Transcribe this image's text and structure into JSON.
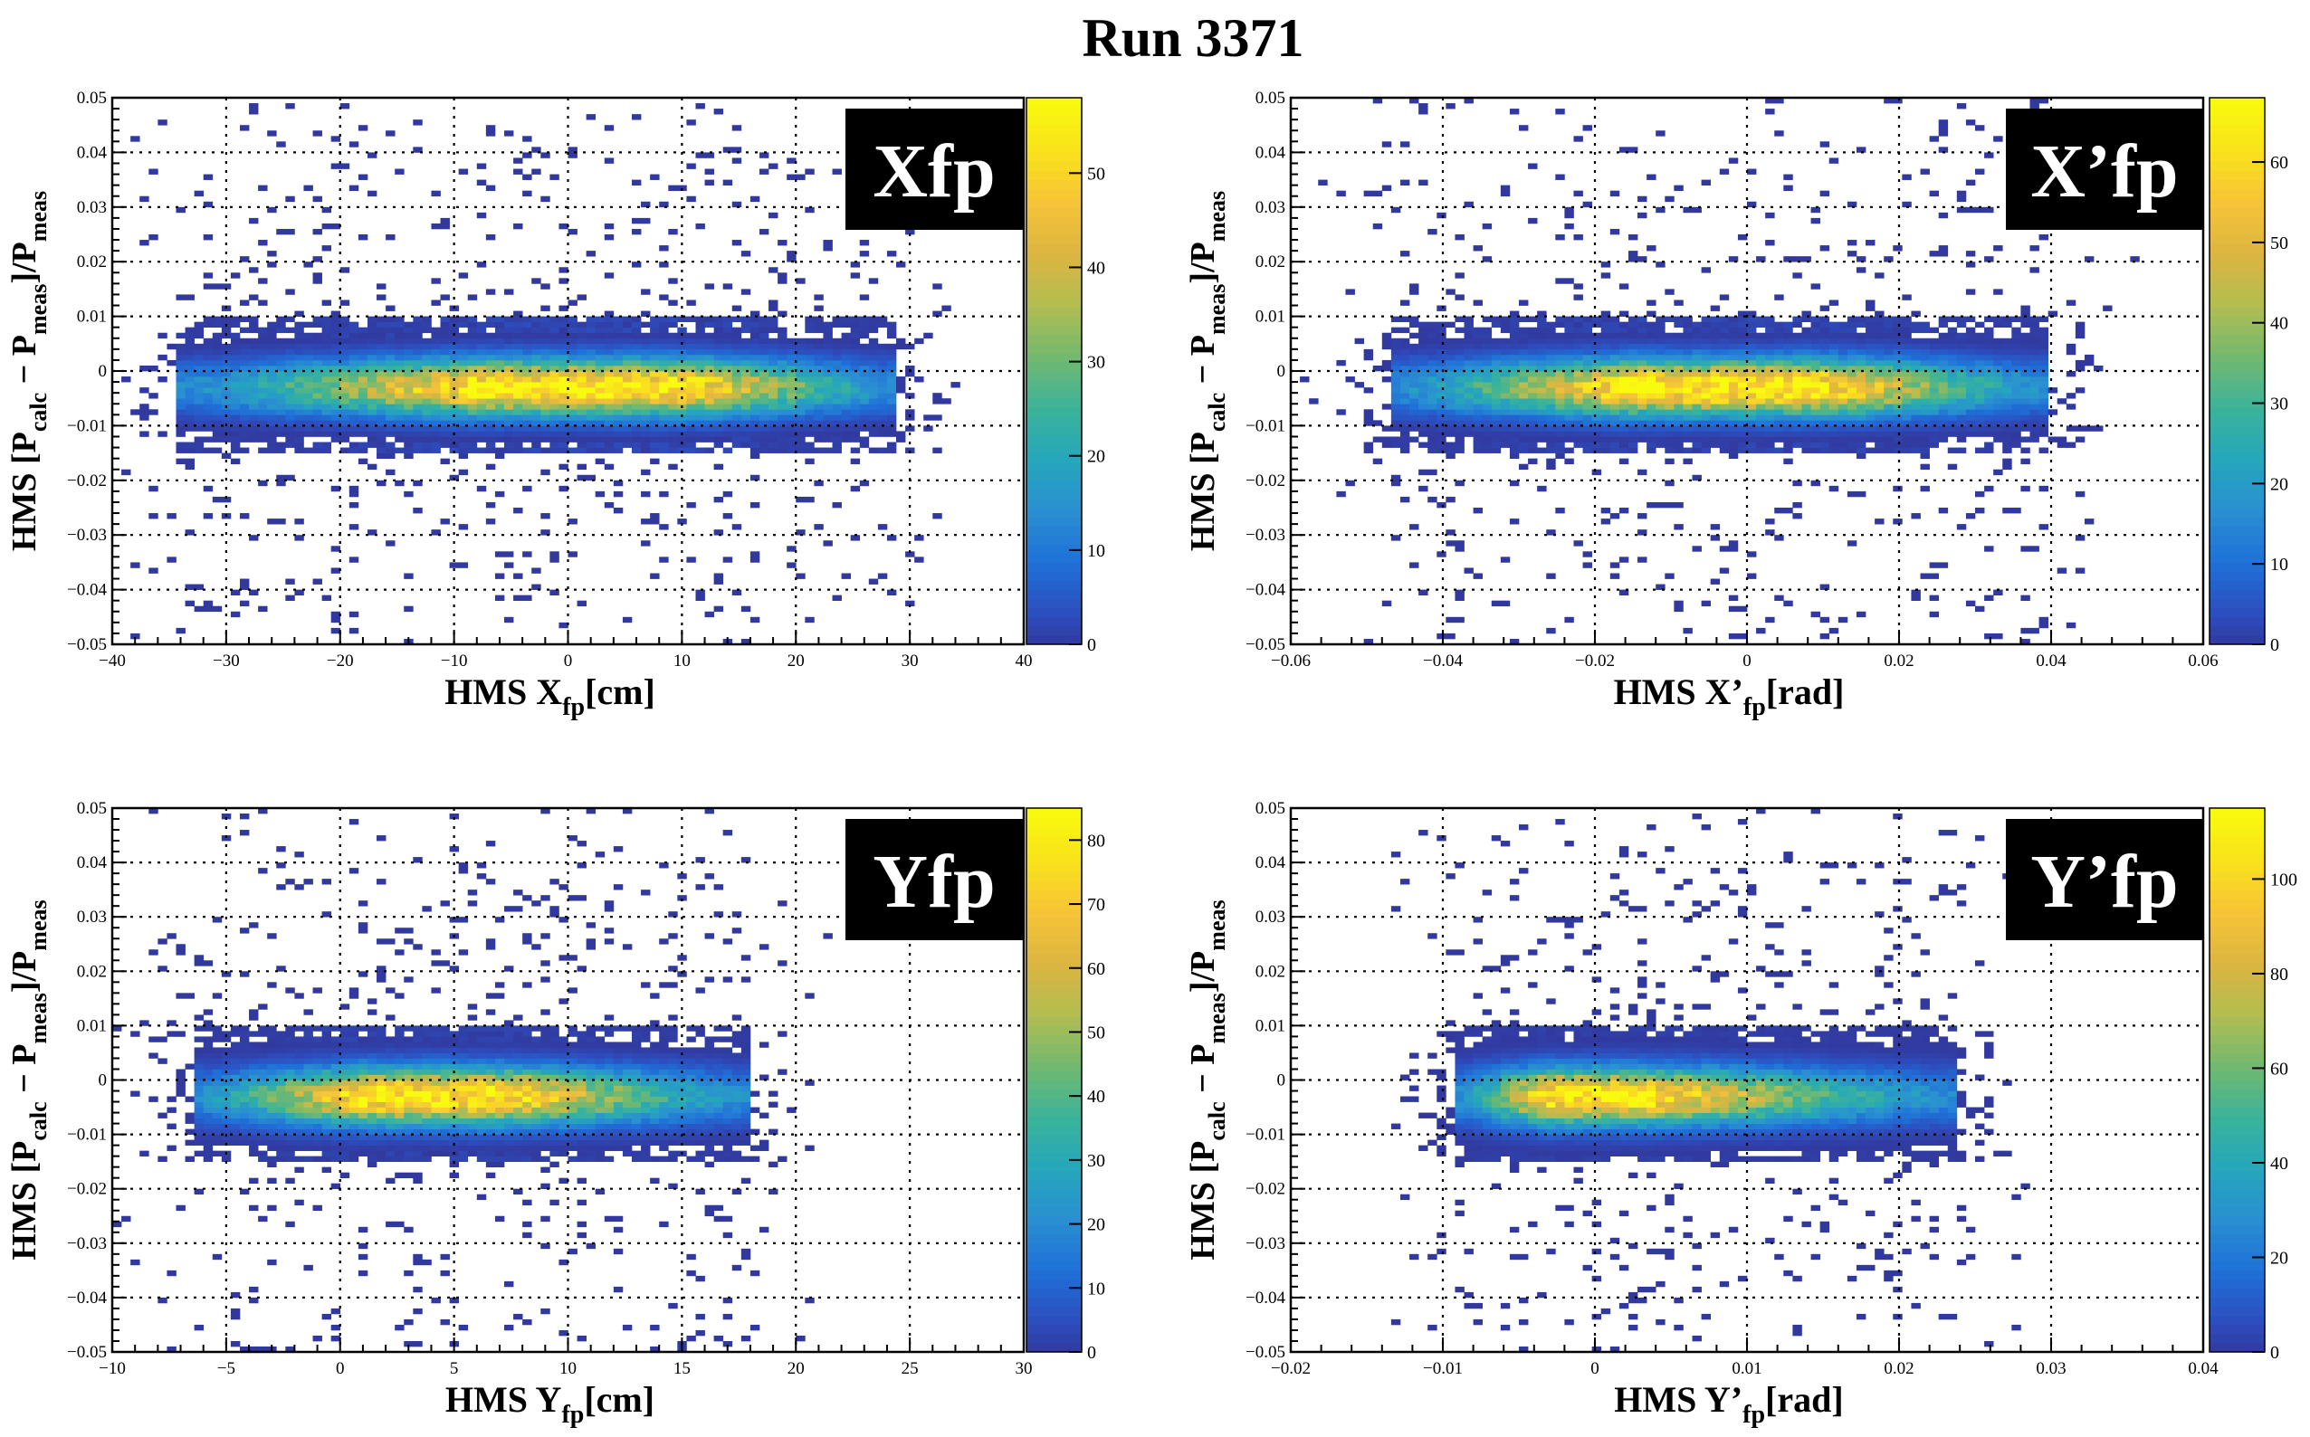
{
  "title": "Run 3371",
  "colors": {
    "palette": [
      "#352a87",
      "#2d4dbd",
      "#1f6fd8",
      "#2a8fd2",
      "#25a6bc",
      "#3bb39a",
      "#72b96f",
      "#b3bd52",
      "#dcb541",
      "#f6c437",
      "#f9e31b",
      "#f9fb0e"
    ],
    "grid": "#000000",
    "label_box_bg": "#000000",
    "label_box_fg": "#ffffff"
  },
  "chart_data": [
    {
      "type": "heatmap",
      "panel": "Xfp",
      "title": "Xfp",
      "xlabel": {
        "main": "HMS X",
        "sub": "fp",
        "unit": "[cm]"
      },
      "ylabel": "HMS [Pcalc − Pmeas]/Pmeas",
      "xlim": [
        -40,
        40
      ],
      "ylim": [
        -0.05,
        0.05
      ],
      "xticks": [
        -40,
        -30,
        -20,
        -10,
        0,
        10,
        20,
        30,
        40
      ],
      "xtick_labels": [
        "−40",
        "−30",
        "−20",
        "−10",
        "0",
        "10",
        "20",
        "30",
        "40"
      ],
      "yticks": [
        -0.05,
        -0.04,
        -0.03,
        -0.02,
        -0.01,
        0,
        0.01,
        0.02,
        0.03,
        0.04,
        0.05
      ],
      "ytick_labels": [
        "−0.05",
        "−0.04",
        "−0.03",
        "−0.02",
        "−0.01",
        "0",
        "0.01",
        "0.02",
        "0.03",
        "0.04",
        "0.05"
      ],
      "zlim": [
        0,
        58
      ],
      "zticks": [
        0,
        10,
        20,
        30,
        40,
        50
      ],
      "band": {
        "x_range": [
          -34,
          29
        ],
        "center_y": -0.003,
        "peak_x": [
          -8,
          10
        ],
        "peak_count": 56,
        "sigma_y": 0.0035
      },
      "grid": true
    },
    {
      "type": "heatmap",
      "panel": "X'fp",
      "title": "X’fp",
      "xlabel": {
        "main": "HMS X’",
        "sub": "fp",
        "unit": "[rad]"
      },
      "ylabel": "HMS [Pcalc − Pmeas]/Pmeas",
      "xlim": [
        -0.06,
        0.06
      ],
      "ylim": [
        -0.05,
        0.05
      ],
      "xticks": [
        -0.06,
        -0.04,
        -0.02,
        0,
        0.02,
        0.04,
        0.06
      ],
      "xtick_labels": [
        "−0.06",
        "−0.04",
        "−0.02",
        "0",
        "0.02",
        "0.04",
        "0.06"
      ],
      "yticks": [
        -0.05,
        -0.04,
        -0.03,
        -0.02,
        -0.01,
        0,
        0.01,
        0.02,
        0.03,
        0.04,
        0.05
      ],
      "ytick_labels": [
        "−0.05",
        "−0.04",
        "−0.03",
        "−0.02",
        "−0.01",
        "0",
        "0.01",
        "0.02",
        "0.03",
        "0.04",
        "0.05"
      ],
      "zlim": [
        0,
        68
      ],
      "zticks": [
        0,
        10,
        20,
        30,
        40,
        50,
        60
      ],
      "band": {
        "x_range": [
          -0.047,
          0.04
        ],
        "center_y": -0.003,
        "peak_x": [
          -0.015,
          0.01
        ],
        "peak_count": 66,
        "sigma_y": 0.0035
      },
      "grid": true
    },
    {
      "type": "heatmap",
      "panel": "Yfp",
      "title": "Yfp",
      "xlabel": {
        "main": "HMS Y",
        "sub": "fp",
        "unit": "[cm]"
      },
      "ylabel": "HMS [Pcalc − Pmeas]/Pmeas",
      "xlim": [
        -10,
        30
      ],
      "ylim": [
        -0.05,
        0.05
      ],
      "xticks": [
        -10,
        -5,
        0,
        5,
        10,
        15,
        20,
        25,
        30
      ],
      "xtick_labels": [
        "−10",
        "−5",
        "0",
        "5",
        "10",
        "15",
        "20",
        "25",
        "30"
      ],
      "yticks": [
        -0.05,
        -0.04,
        -0.03,
        -0.02,
        -0.01,
        0,
        0.01,
        0.02,
        0.03,
        0.04,
        0.05
      ],
      "ytick_labels": [
        "−0.05",
        "−0.04",
        "−0.03",
        "−0.02",
        "−0.01",
        "0",
        "0.01",
        "0.02",
        "0.03",
        "0.04",
        "0.05"
      ],
      "zlim": [
        0,
        85
      ],
      "zticks": [
        0,
        10,
        20,
        30,
        40,
        50,
        60,
        70,
        80
      ],
      "band": {
        "x_range": [
          -6.5,
          18
        ],
        "center_y": -0.003,
        "peak_x": [
          1,
          7
        ],
        "peak_count": 82,
        "sigma_y": 0.0035
      },
      "grid": true
    },
    {
      "type": "heatmap",
      "panel": "Y'fp",
      "title": "Y’fp",
      "xlabel": {
        "main": "HMS Y’",
        "sub": "fp",
        "unit": "[rad]"
      },
      "ylabel": "HMS [Pcalc − Pmeas]/Pmeas",
      "xlim": [
        -0.02,
        0.04
      ],
      "ylim": [
        -0.05,
        0.05
      ],
      "xticks": [
        -0.02,
        -0.01,
        0,
        0.01,
        0.02,
        0.03,
        0.04
      ],
      "xtick_labels": [
        "−0.02",
        "−0.01",
        "0",
        "0.01",
        "0.02",
        "0.03",
        "0.04"
      ],
      "yticks": [
        -0.05,
        -0.04,
        -0.03,
        -0.02,
        -0.01,
        0,
        0.01,
        0.02,
        0.03,
        0.04,
        0.05
      ],
      "ytick_labels": [
        "−0.05",
        "−0.04",
        "−0.03",
        "−0.02",
        "−0.01",
        "0",
        "0.01",
        "0.02",
        "0.03",
        "0.04",
        "0.05"
      ],
      "zlim": [
        0,
        115
      ],
      "zticks": [
        0,
        20,
        40,
        60,
        80,
        100
      ],
      "band": {
        "x_range": [
          -0.0095,
          0.0235
        ],
        "center_y": -0.003,
        "peak_x": [
          -0.003,
          0.003
        ],
        "peak_count": 110,
        "sigma_y": 0.0035
      },
      "grid": true
    }
  ]
}
